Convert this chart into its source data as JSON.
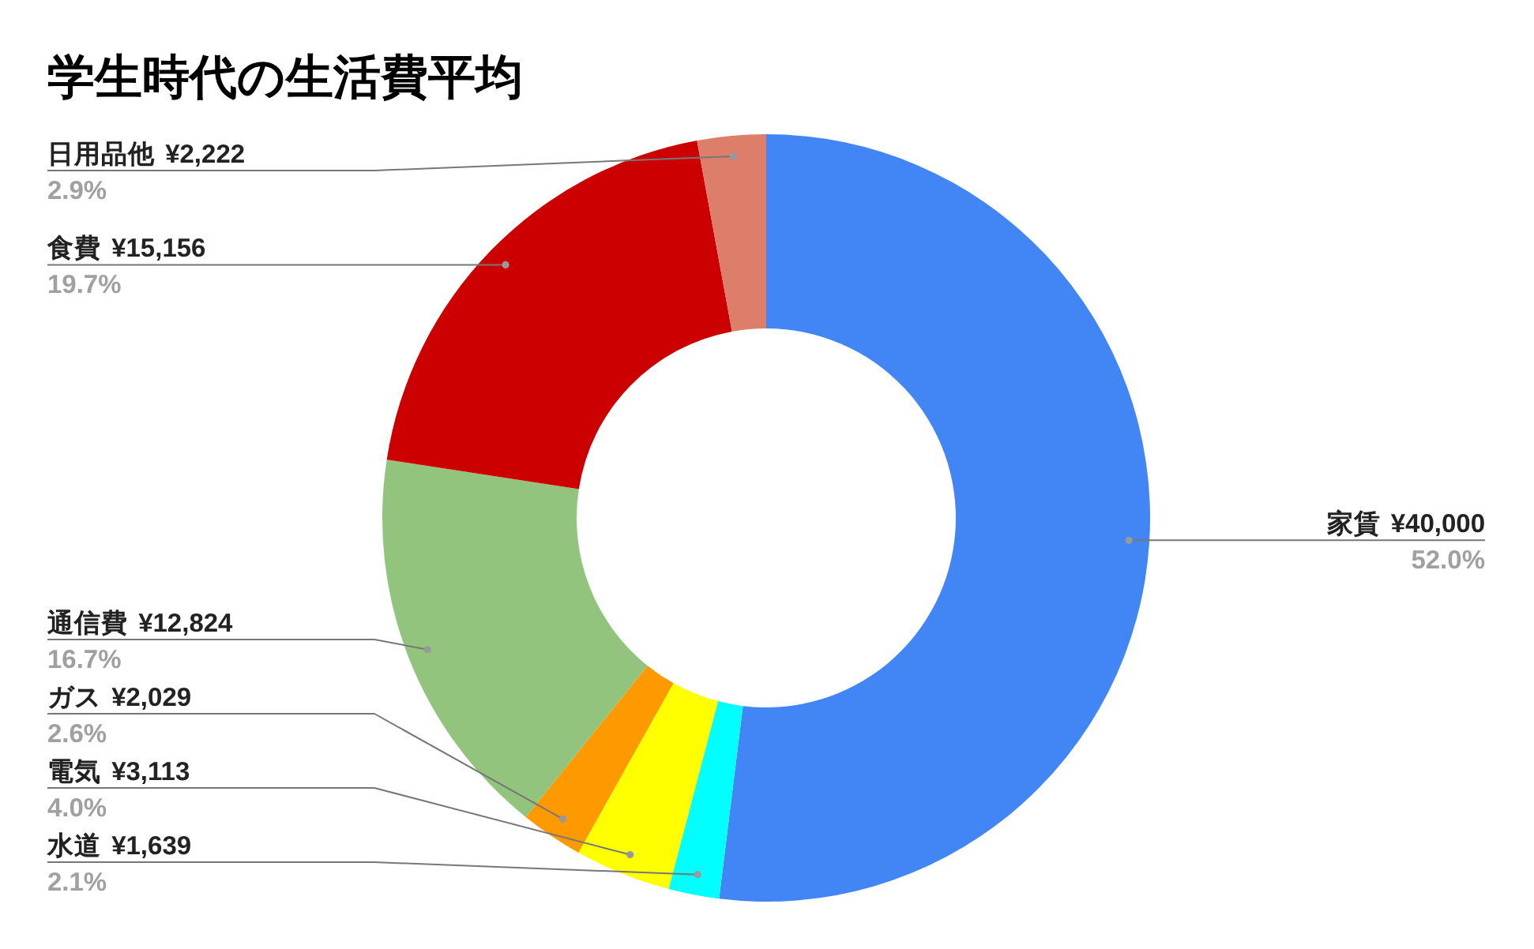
{
  "chart_data": {
    "type": "donut",
    "title": "学生時代の生活費平均",
    "categories": [
      "家賃",
      "水道",
      "電気",
      "ガス",
      "通信費",
      "食費",
      "日用品他"
    ],
    "values": [
      40000,
      1639,
      3113,
      2029,
      12824,
      15156,
      2222
    ],
    "colors": [
      "#4285f4",
      "#00ffff",
      "#ffff00",
      "#ff9900",
      "#93c47d",
      "#cc0000",
      "#dd7e6b"
    ],
    "value_labels": [
      "¥40,000",
      "¥1,639",
      "¥3,113",
      "¥2,029",
      "¥12,824",
      "¥15,156",
      "¥2,222"
    ],
    "annotations": [
      {
        "text": "52.0%",
        "x": "家賃"
      },
      {
        "text": "2.1%",
        "x": "水道"
      },
      {
        "text": "4.0%",
        "x": "電気"
      },
      {
        "text": "2.6%",
        "x": "ガス"
      },
      {
        "text": "16.7%",
        "x": "通信費"
      },
      {
        "text": "19.7%",
        "x": "食費"
      },
      {
        "text": "2.9%",
        "x": "日用品他"
      }
    ]
  }
}
